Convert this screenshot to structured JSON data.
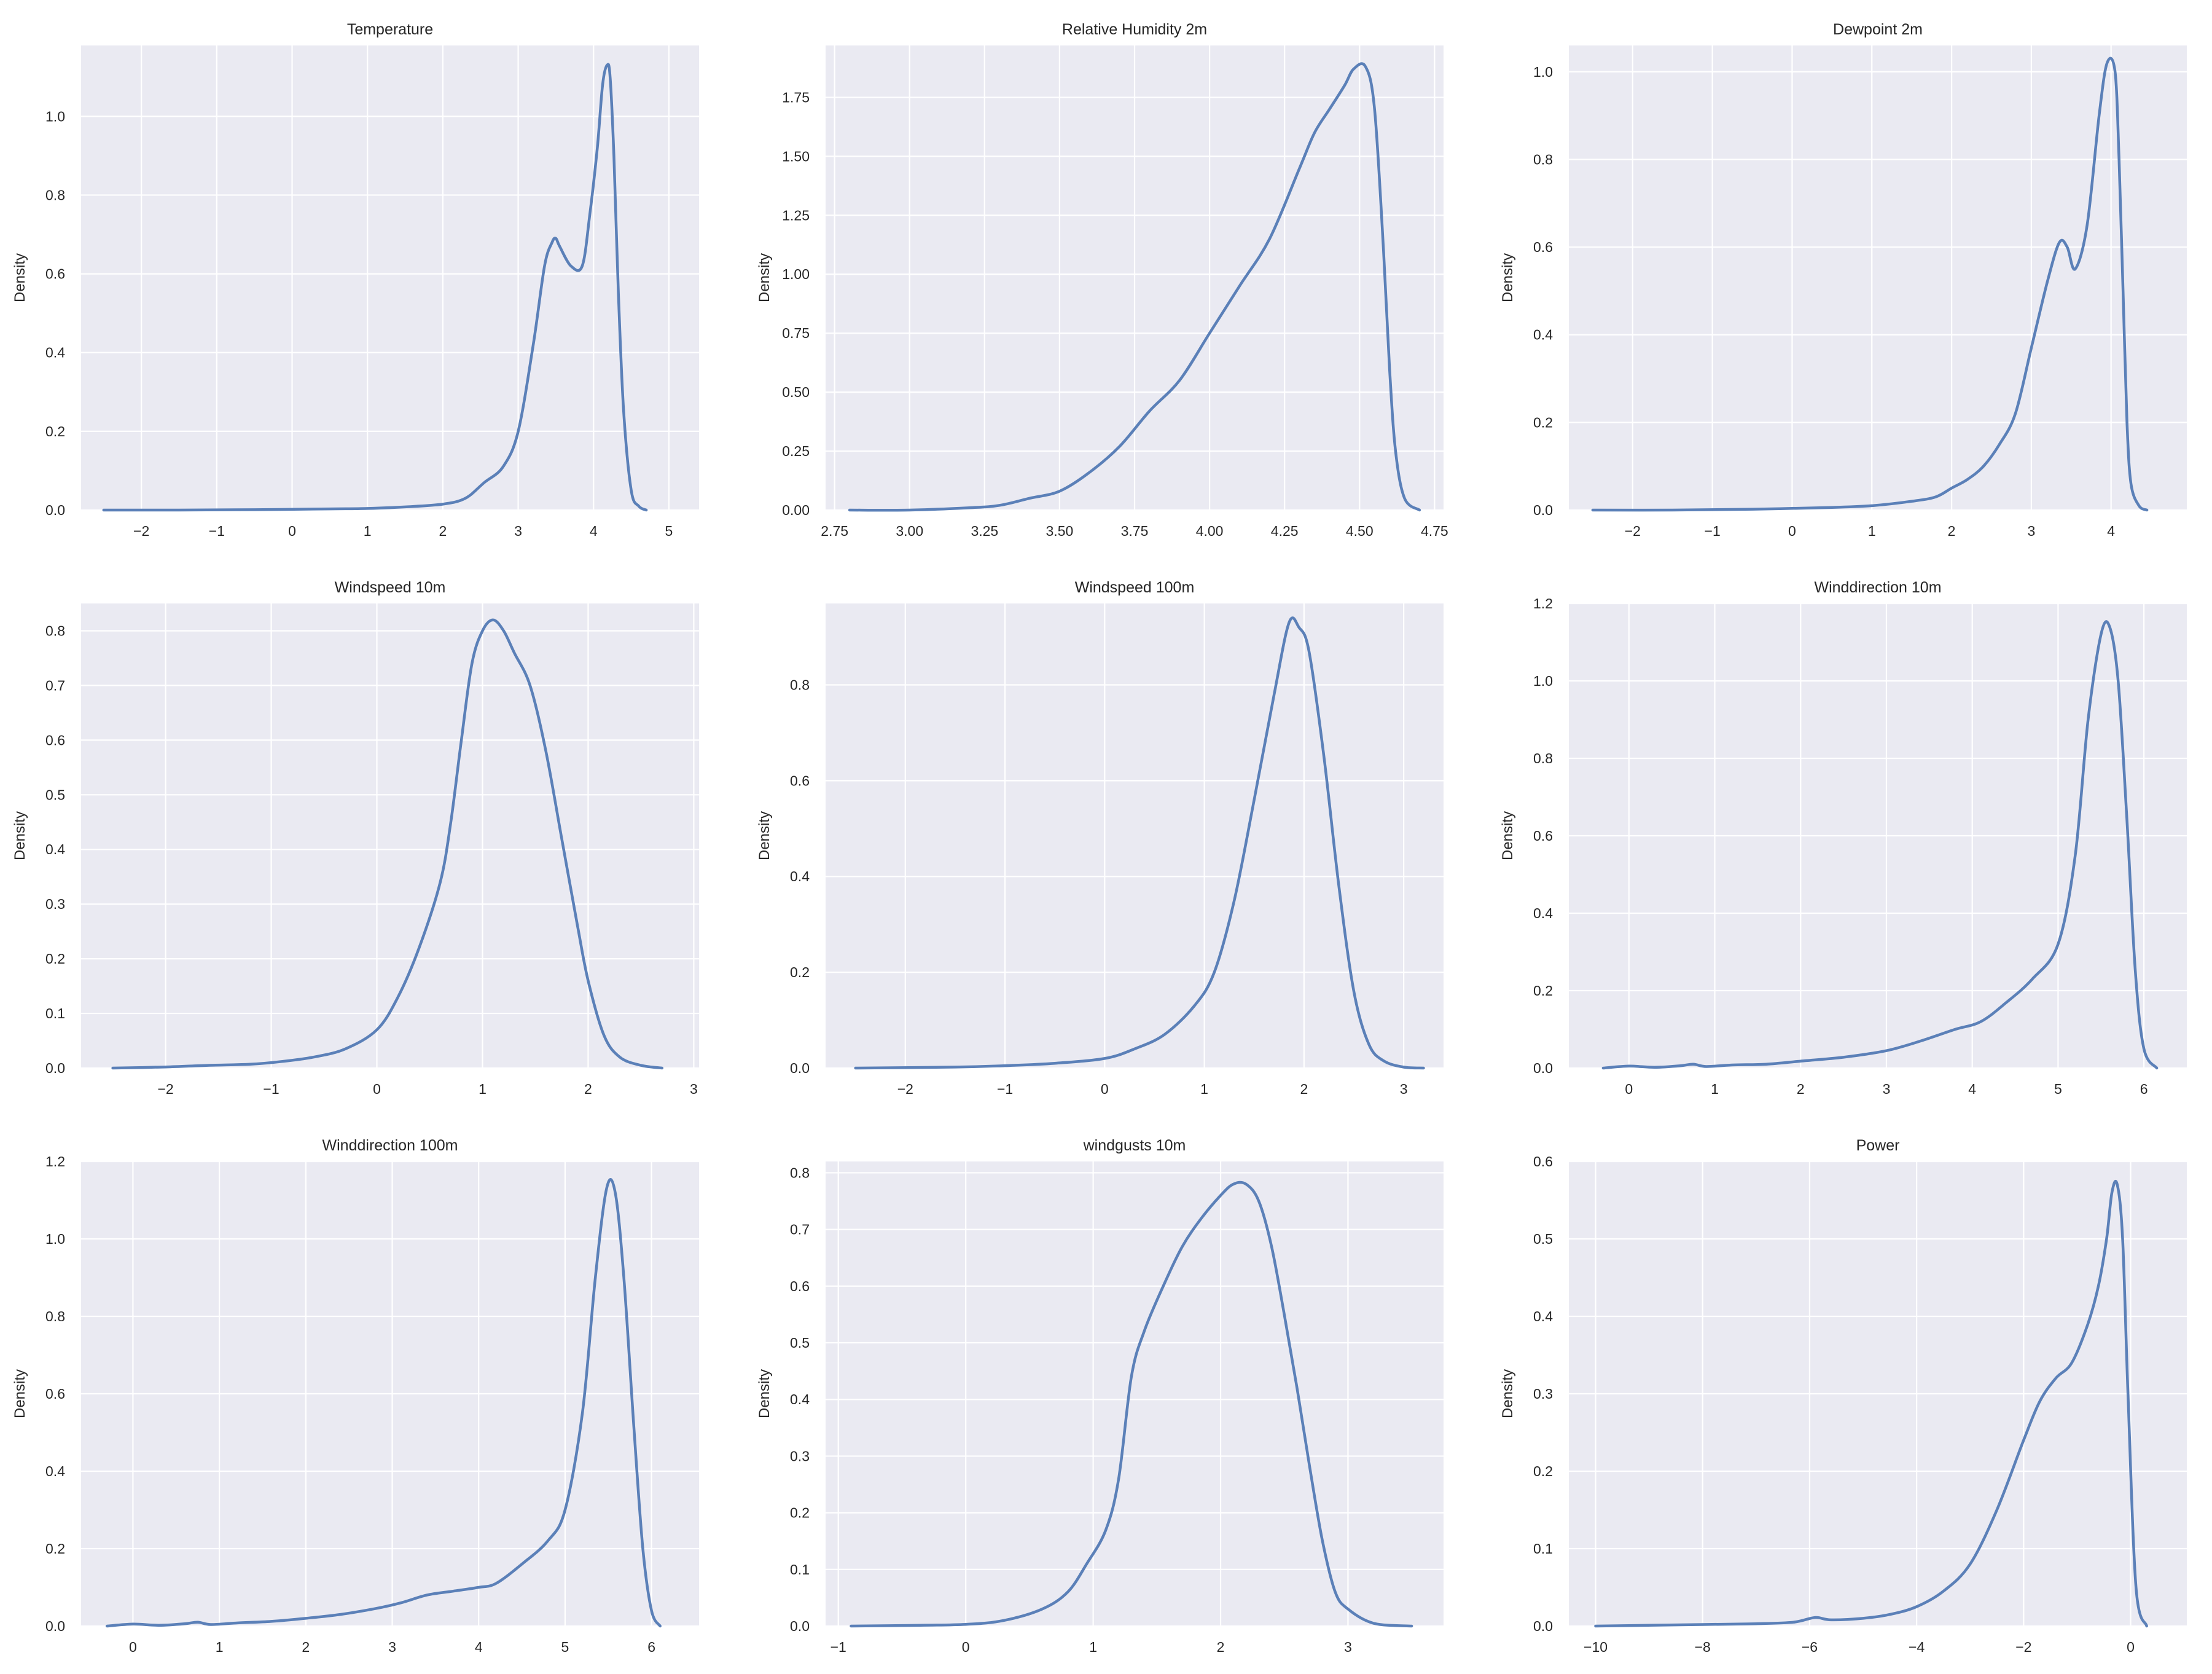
{
  "chart_data": [
    {
      "type": "line",
      "title": "Temperature",
      "ylabel": "Density",
      "xlabel": "",
      "xlim": [
        -2.8,
        5.4
      ],
      "ylim": [
        0,
        1.18
      ],
      "xticks": [
        -2,
        -1,
        0,
        1,
        2,
        3,
        4,
        5
      ],
      "xtick_labels": [
        "−2",
        "−1",
        "0",
        "1",
        "2",
        "3",
        "4",
        "5"
      ],
      "yticks": [
        0.0,
        0.2,
        0.4,
        0.6,
        0.8,
        1.0
      ],
      "ytick_labels": [
        "0.0",
        "0.2",
        "0.4",
        "0.6",
        "0.8",
        "1.0"
      ],
      "series": [
        {
          "x": [
            -2.5,
            -1.5,
            -0.5,
            0.5,
            1.0,
            1.5,
            2.0,
            2.3,
            2.55,
            2.8,
            3.0,
            3.2,
            3.35,
            3.45,
            3.5,
            3.55,
            3.7,
            3.85,
            3.95,
            4.05,
            4.12,
            4.18,
            4.22,
            4.27,
            4.33,
            4.4,
            4.5,
            4.6,
            4.7
          ],
          "y": [
            0,
            0,
            0.001,
            0.003,
            0.004,
            0.008,
            0.015,
            0.03,
            0.07,
            0.11,
            0.2,
            0.42,
            0.62,
            0.68,
            0.69,
            0.67,
            0.62,
            0.62,
            0.75,
            0.92,
            1.08,
            1.13,
            1.1,
            0.9,
            0.55,
            0.25,
            0.05,
            0.01,
            0
          ]
        }
      ]
    },
    {
      "type": "line",
      "title": "Relative Humidity 2m",
      "ylabel": "Density",
      "xlabel": "",
      "xlim": [
        2.72,
        4.78
      ],
      "ylim": [
        0,
        1.97
      ],
      "xticks": [
        2.75,
        3.0,
        3.25,
        3.5,
        3.75,
        4.0,
        4.25,
        4.5,
        4.75
      ],
      "xtick_labels": [
        "2.75",
        "3.00",
        "3.25",
        "3.50",
        "3.75",
        "4.00",
        "4.25",
        "4.50",
        "4.75"
      ],
      "yticks": [
        0.0,
        0.25,
        0.5,
        0.75,
        1.0,
        1.25,
        1.5,
        1.75
      ],
      "ytick_labels": [
        "0.00",
        "0.25",
        "0.50",
        "0.75",
        "1.00",
        "1.25",
        "1.50",
        "1.75"
      ],
      "series": [
        {
          "x": [
            2.8,
            3.0,
            3.2,
            3.3,
            3.4,
            3.5,
            3.6,
            3.7,
            3.8,
            3.9,
            4.0,
            4.1,
            4.2,
            4.3,
            4.35,
            4.4,
            4.45,
            4.48,
            4.52,
            4.55,
            4.58,
            4.6,
            4.62,
            4.65,
            4.7
          ],
          "y": [
            0,
            0,
            0.01,
            0.02,
            0.05,
            0.08,
            0.16,
            0.27,
            0.42,
            0.55,
            0.75,
            0.95,
            1.15,
            1.45,
            1.6,
            1.7,
            1.8,
            1.87,
            1.88,
            1.7,
            1.1,
            0.6,
            0.25,
            0.05,
            0
          ]
        }
      ]
    },
    {
      "type": "line",
      "title": "Dewpoint 2m",
      "ylabel": "Density",
      "xlabel": "",
      "xlim": [
        -2.8,
        4.95
      ],
      "ylim": [
        0,
        1.06
      ],
      "xticks": [
        -2,
        -1,
        0,
        1,
        2,
        3,
        4
      ],
      "xtick_labels": [
        "−2",
        "−1",
        "0",
        "1",
        "2",
        "3",
        "4"
      ],
      "yticks": [
        0.0,
        0.2,
        0.4,
        0.6,
        0.8,
        1.0
      ],
      "ytick_labels": [
        "0.0",
        "0.2",
        "0.4",
        "0.6",
        "0.8",
        "1.0"
      ],
      "series": [
        {
          "x": [
            -2.5,
            -1.5,
            -0.5,
            0.5,
            1.0,
            1.5,
            1.8,
            2.0,
            2.2,
            2.4,
            2.6,
            2.8,
            3.0,
            3.2,
            3.35,
            3.45,
            3.55,
            3.7,
            3.85,
            3.95,
            4.05,
            4.1,
            4.15,
            4.2,
            4.25,
            4.35,
            4.45
          ],
          "y": [
            0,
            0,
            0.002,
            0.006,
            0.01,
            0.02,
            0.03,
            0.05,
            0.07,
            0.1,
            0.15,
            0.22,
            0.37,
            0.52,
            0.61,
            0.6,
            0.55,
            0.65,
            0.9,
            1.02,
            1.0,
            0.8,
            0.5,
            0.2,
            0.06,
            0.01,
            0
          ]
        }
      ]
    },
    {
      "type": "line",
      "title": "Windspeed 10m",
      "ylabel": "Density",
      "xlabel": "",
      "xlim": [
        -2.8,
        3.05
      ],
      "ylim": [
        0,
        0.85
      ],
      "xticks": [
        -2,
        -1,
        0,
        1,
        2,
        3
      ],
      "xtick_labels": [
        "−2",
        "−1",
        "0",
        "1",
        "2",
        "3"
      ],
      "yticks": [
        0.0,
        0.1,
        0.2,
        0.3,
        0.4,
        0.5,
        0.6,
        0.7,
        0.8
      ],
      "ytick_labels": [
        "0.0",
        "0.1",
        "0.2",
        "0.3",
        "0.4",
        "0.5",
        "0.6",
        "0.7",
        "0.8"
      ],
      "series": [
        {
          "x": [
            -2.5,
            -2.0,
            -1.6,
            -1.2,
            -0.9,
            -0.6,
            -0.3,
            0.0,
            0.2,
            0.4,
            0.6,
            0.7,
            0.8,
            0.9,
            1.0,
            1.1,
            1.2,
            1.3,
            1.45,
            1.6,
            1.75,
            1.9,
            2.0,
            2.15,
            2.3,
            2.5,
            2.7
          ],
          "y": [
            0,
            0.002,
            0.005,
            0.007,
            0.012,
            0.02,
            0.035,
            0.07,
            0.13,
            0.22,
            0.34,
            0.45,
            0.6,
            0.74,
            0.8,
            0.82,
            0.8,
            0.76,
            0.7,
            0.58,
            0.42,
            0.26,
            0.16,
            0.06,
            0.02,
            0.005,
            0
          ]
        }
      ]
    },
    {
      "type": "line",
      "title": "Windspeed 100m",
      "ylabel": "Density",
      "xlabel": "",
      "xlim": [
        -2.8,
        3.4
      ],
      "ylim": [
        0,
        0.97
      ],
      "xticks": [
        -2,
        -1,
        0,
        1,
        2,
        3
      ],
      "xtick_labels": [
        "−2",
        "−1",
        "0",
        "1",
        "2",
        "3"
      ],
      "yticks": [
        0.0,
        0.2,
        0.4,
        0.6,
        0.8
      ],
      "ytick_labels": [
        "0.0",
        "0.2",
        "0.4",
        "0.6",
        "0.8"
      ],
      "series": [
        {
          "x": [
            -2.5,
            -1.5,
            -1.0,
            -0.5,
            0.0,
            0.3,
            0.6,
            0.9,
            1.1,
            1.3,
            1.5,
            1.7,
            1.85,
            1.95,
            2.05,
            2.2,
            2.35,
            2.5,
            2.65,
            2.8,
            3.0,
            3.2
          ],
          "y": [
            0,
            0.002,
            0.005,
            0.01,
            0.02,
            0.04,
            0.07,
            0.13,
            0.2,
            0.35,
            0.56,
            0.78,
            0.93,
            0.92,
            0.87,
            0.65,
            0.38,
            0.16,
            0.05,
            0.015,
            0.002,
            0
          ]
        }
      ]
    },
    {
      "type": "line",
      "title": "Winddirection 10m",
      "ylabel": "Density",
      "xlabel": "",
      "xlim": [
        -0.7,
        6.5
      ],
      "ylim": [
        0,
        1.2
      ],
      "xticks": [
        0,
        1,
        2,
        3,
        4,
        5,
        6
      ],
      "xtick_labels": [
        "0",
        "1",
        "2",
        "3",
        "4",
        "5",
        "6"
      ],
      "yticks": [
        0.0,
        0.2,
        0.4,
        0.6,
        0.8,
        1.0,
        1.2
      ],
      "ytick_labels": [
        "0.0",
        "0.2",
        "0.4",
        "0.6",
        "0.8",
        "1.0",
        "1.2"
      ],
      "series": [
        {
          "x": [
            -0.3,
            0.0,
            0.3,
            0.6,
            0.75,
            0.9,
            1.2,
            1.6,
            2.0,
            2.5,
            3.0,
            3.4,
            3.8,
            4.1,
            4.4,
            4.7,
            5.0,
            5.2,
            5.35,
            5.5,
            5.6,
            5.7,
            5.8,
            5.9,
            6.0,
            6.15
          ],
          "y": [
            0,
            0.005,
            0.002,
            0.006,
            0.01,
            0.004,
            0.008,
            0.01,
            0.018,
            0.028,
            0.045,
            0.07,
            0.1,
            0.12,
            0.17,
            0.23,
            0.32,
            0.55,
            0.9,
            1.12,
            1.14,
            1.0,
            0.65,
            0.25,
            0.05,
            0
          ]
        }
      ]
    },
    {
      "type": "line",
      "title": "Winddirection 100m",
      "ylabel": "Density",
      "xlabel": "",
      "xlim": [
        -0.6,
        6.55
      ],
      "ylim": [
        0,
        1.2
      ],
      "xticks": [
        0,
        1,
        2,
        3,
        4,
        5,
        6
      ],
      "xtick_labels": [
        "0",
        "1",
        "2",
        "3",
        "4",
        "5",
        "6"
      ],
      "yticks": [
        0.0,
        0.2,
        0.4,
        0.6,
        0.8,
        1.0,
        1.2
      ],
      "ytick_labels": [
        "0.0",
        "0.2",
        "0.4",
        "0.6",
        "0.8",
        "1.0",
        "1.2"
      ],
      "series": [
        {
          "x": [
            -0.3,
            0.0,
            0.3,
            0.6,
            0.75,
            0.9,
            1.2,
            1.6,
            2.0,
            2.4,
            2.8,
            3.1,
            3.4,
            3.7,
            4.0,
            4.2,
            4.5,
            4.8,
            5.0,
            5.2,
            5.35,
            5.48,
            5.58,
            5.68,
            5.8,
            5.9,
            6.0,
            6.1
          ],
          "y": [
            0,
            0.005,
            0.002,
            0.006,
            0.01,
            0.004,
            0.008,
            0.012,
            0.02,
            0.03,
            0.045,
            0.06,
            0.08,
            0.09,
            0.1,
            0.11,
            0.16,
            0.22,
            0.3,
            0.55,
            0.9,
            1.13,
            1.12,
            0.9,
            0.5,
            0.2,
            0.04,
            0
          ]
        }
      ]
    },
    {
      "type": "line",
      "title": "windgusts 10m",
      "ylabel": "Density",
      "xlabel": "",
      "xlim": [
        -1.1,
        3.75
      ],
      "ylim": [
        0,
        0.82
      ],
      "xticks": [
        -1,
        0,
        1,
        2,
        3
      ],
      "xtick_labels": [
        "−1",
        "0",
        "1",
        "2",
        "3"
      ],
      "yticks": [
        0.0,
        0.1,
        0.2,
        0.3,
        0.4,
        0.5,
        0.6,
        0.7,
        0.8
      ],
      "ytick_labels": [
        "0.0",
        "0.1",
        "0.2",
        "0.3",
        "0.4",
        "0.5",
        "0.6",
        "0.7",
        "0.8"
      ],
      "series": [
        {
          "x": [
            -0.9,
            -0.5,
            0.0,
            0.3,
            0.6,
            0.8,
            0.95,
            1.1,
            1.2,
            1.3,
            1.4,
            1.55,
            1.7,
            1.85,
            2.0,
            2.1,
            2.2,
            2.3,
            2.4,
            2.5,
            2.6,
            2.7,
            2.8,
            2.9,
            3.0,
            3.2,
            3.5
          ],
          "y": [
            0,
            0.001,
            0.003,
            0.01,
            0.03,
            0.06,
            0.11,
            0.17,
            0.26,
            0.44,
            0.52,
            0.6,
            0.67,
            0.72,
            0.76,
            0.78,
            0.78,
            0.75,
            0.67,
            0.55,
            0.42,
            0.28,
            0.15,
            0.06,
            0.03,
            0.005,
            0
          ]
        }
      ]
    },
    {
      "type": "line",
      "title": "Power",
      "ylabel": "Density",
      "xlabel": "",
      "xlim": [
        -10.5,
        1.05
      ],
      "ylim": [
        0,
        0.6
      ],
      "xticks": [
        -10,
        -8,
        -6,
        -4,
        -2,
        0
      ],
      "xtick_labels": [
        "−10",
        "−8",
        "−6",
        "−4",
        "−2",
        "0"
      ],
      "yticks": [
        0.0,
        0.1,
        0.2,
        0.3,
        0.4,
        0.5,
        0.6
      ],
      "ytick_labels": [
        "0.0",
        "0.1",
        "0.2",
        "0.3",
        "0.4",
        "0.5",
        "0.6"
      ],
      "series": [
        {
          "x": [
            -10.0,
            -8.0,
            -7.0,
            -6.3,
            -5.9,
            -5.6,
            -5.0,
            -4.5,
            -4.0,
            -3.5,
            -3.0,
            -2.5,
            -2.0,
            -1.7,
            -1.4,
            -1.1,
            -0.8,
            -0.6,
            -0.45,
            -0.35,
            -0.25,
            -0.15,
            -0.05,
            0.1,
            0.3
          ],
          "y": [
            0,
            0.002,
            0.003,
            0.005,
            0.011,
            0.008,
            0.01,
            0.015,
            0.025,
            0.045,
            0.08,
            0.15,
            0.24,
            0.29,
            0.32,
            0.34,
            0.39,
            0.44,
            0.5,
            0.56,
            0.57,
            0.5,
            0.3,
            0.05,
            0
          ]
        }
      ]
    }
  ]
}
